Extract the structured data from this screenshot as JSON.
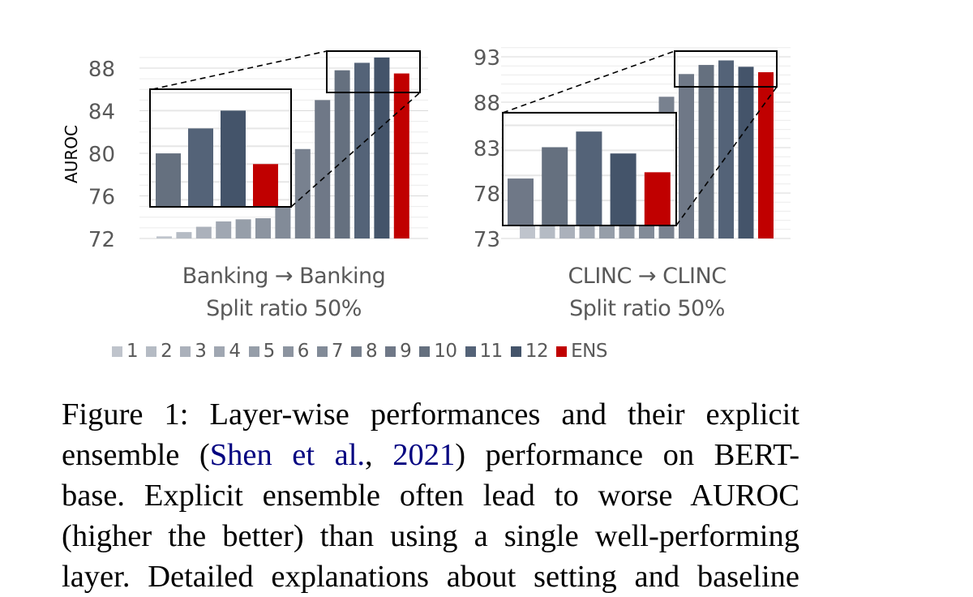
{
  "chart_data": [
    {
      "type": "bar",
      "title": "Banking → Banking",
      "subtitle": "Split ratio 50%",
      "xlabel": "",
      "ylabel": "AUROC",
      "ylim": [
        72,
        89.5
      ],
      "yticks": [
        72,
        76,
        80,
        84,
        88
      ],
      "grid": true,
      "categories": [
        "1",
        "2",
        "3",
        "4",
        "5",
        "6",
        "7",
        "8",
        "9",
        "10",
        "11",
        "12",
        "ENS"
      ],
      "values": [
        72.2,
        72.6,
        73.1,
        73.6,
        73.8,
        73.9,
        75.0,
        80.4,
        85.0,
        87.8,
        88.5,
        89.0,
        87.5
      ],
      "zoom_inset": {
        "categories": [
          "10",
          "11",
          "12",
          "ENS"
        ],
        "values": [
          87.8,
          88.5,
          89.0,
          87.5
        ]
      }
    },
    {
      "type": "bar",
      "title": "CLINC → CLINC",
      "subtitle": "Split ratio 50%",
      "xlabel": "",
      "ylabel": "",
      "ylim": [
        73,
        94
      ],
      "yticks": [
        73,
        78,
        83,
        88,
        93
      ],
      "grid": true,
      "categories": [
        "1",
        "2",
        "3",
        "4",
        "5",
        "6",
        "7",
        "8",
        "9",
        "10",
        "11",
        "12",
        "ENS"
      ],
      "values": [
        74.5,
        74.5,
        74.5,
        74.5,
        74.5,
        74.5,
        74.5,
        88.6,
        91.1,
        92.1,
        92.6,
        91.9,
        91.3
      ],
      "zoom_inset": {
        "categories": [
          "9",
          "10",
          "11",
          "12",
          "ENS"
        ],
        "values": [
          91.1,
          92.1,
          92.6,
          91.9,
          91.3
        ]
      }
    }
  ],
  "legend": {
    "position": "bottom",
    "items": [
      {
        "label": "1",
        "color": "#bfc4cc"
      },
      {
        "label": "2",
        "color": "#b5bbc4"
      },
      {
        "label": "3",
        "color": "#abb1bb"
      },
      {
        "label": "4",
        "color": "#a0a7b2"
      },
      {
        "label": "5",
        "color": "#969ea9"
      },
      {
        "label": "6",
        "color": "#8c94a0"
      },
      {
        "label": "7",
        "color": "#828b98"
      },
      {
        "label": "8",
        "color": "#78818f"
      },
      {
        "label": "9",
        "color": "#6f7887"
      },
      {
        "label": "10",
        "color": "#65707f"
      },
      {
        "label": "11",
        "color": "#546378"
      },
      {
        "label": "12",
        "color": "#44546a"
      },
      {
        "label": "ENS",
        "color": "#c00000"
      }
    ]
  },
  "caption": {
    "line1": "Figure 1:  Layer-wise performances and their explicit",
    "line2_pre": "ensemble (",
    "line2_cite_a": "Shen et al.",
    "line2_mid": ", ",
    "line2_cite_b": "2021",
    "line2_post": ") performance on BERT-",
    "line3": "base.  Explicit ensemble often lead to worse AUROC",
    "line4": "(higher the better) than using a single well-performing",
    "line5": "layer. Detailed explanations about setting and baseline"
  }
}
